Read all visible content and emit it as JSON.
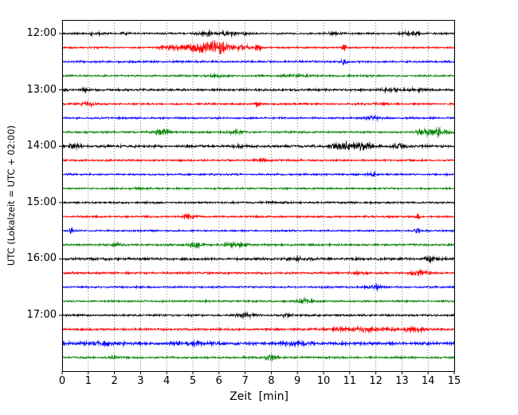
{
  "figure": {
    "background": "#ffffff"
  },
  "chart_data": {
    "type": "line",
    "subtype": "seismogram-helicorder",
    "title": "",
    "xlabel": "Zeit  [min]",
    "ylabel": "UTC (Lokalzeit = UTC + 02:00)",
    "xlim": [
      0,
      15
    ],
    "minutes_per_line": 15,
    "x_tick_labels": [
      "0",
      "1",
      "2",
      "3",
      "4",
      "5",
      "6",
      "7",
      "8",
      "9",
      "10",
      "11",
      "12",
      "13",
      "14",
      "15"
    ],
    "hour_tick_labels": [
      "12:00",
      "13:00",
      "14:00",
      "15:00",
      "16:00",
      "17:00"
    ],
    "grid": {
      "vertical": true,
      "style": "dotted",
      "color": "#555555"
    },
    "legend": "none",
    "colors": {
      "black": "#000000",
      "red": "#ff0000",
      "blue": "#0000ff",
      "green": "#008000"
    },
    "traces": [
      {
        "time": "12:00",
        "color": "black",
        "base_noise": 1.3,
        "events": [
          [
            1.3,
            1.8,
            0.25
          ],
          [
            2.3,
            1.2,
            0.2
          ],
          [
            5.6,
            1.8,
            0.5
          ],
          [
            6.4,
            1.8,
            0.3
          ],
          [
            7.0,
            1.2,
            0.2
          ],
          [
            10.4,
            1.3,
            0.3
          ],
          [
            13.3,
            2.6,
            0.35
          ]
        ]
      },
      {
        "time": "12:15",
        "color": "red",
        "base_noise": 1.2,
        "events": [
          [
            4.1,
            2.5,
            0.4
          ],
          [
            5.4,
            7.5,
            0.7
          ],
          [
            6.1,
            5.0,
            0.4
          ],
          [
            6.9,
            3.0,
            0.3
          ],
          [
            7.5,
            4.5,
            0.12
          ],
          [
            10.8,
            4.5,
            0.09
          ]
        ]
      },
      {
        "time": "12:30",
        "color": "blue",
        "base_noise": 1.4,
        "events": [
          [
            10.8,
            3.5,
            0.1
          ]
        ]
      },
      {
        "time": "12:45",
        "color": "green",
        "base_noise": 1.3,
        "events": [
          [
            6.0,
            0.8,
            0.5
          ],
          [
            9.0,
            1.0,
            0.5
          ]
        ]
      },
      {
        "time": "13:00",
        "color": "black",
        "base_noise": 1.6,
        "events": [
          [
            1.0,
            1.2,
            0.3
          ],
          [
            12.6,
            1.8,
            0.4
          ],
          [
            13.6,
            1.6,
            0.3
          ]
        ]
      },
      {
        "time": "13:15",
        "color": "red",
        "base_noise": 1.3,
        "events": [
          [
            1.0,
            3.0,
            0.22
          ],
          [
            7.5,
            1.8,
            0.12
          ],
          [
            12.2,
            1.2,
            0.3
          ]
        ]
      },
      {
        "time": "13:30",
        "color": "blue",
        "base_noise": 1.3,
        "events": [
          [
            11.9,
            2.2,
            0.3
          ]
        ]
      },
      {
        "time": "13:45",
        "color": "green",
        "base_noise": 1.4,
        "events": [
          [
            3.8,
            3.5,
            0.3
          ],
          [
            6.6,
            1.8,
            0.35
          ],
          [
            14.2,
            6.0,
            0.5
          ]
        ]
      },
      {
        "time": "14:00",
        "color": "black",
        "base_noise": 1.7,
        "events": [
          [
            0.5,
            3.5,
            0.2
          ],
          [
            6.8,
            1.8,
            0.2
          ],
          [
            10.8,
            6.0,
            0.45
          ],
          [
            11.6,
            3.5,
            0.3
          ],
          [
            12.9,
            2.6,
            0.3
          ]
        ]
      },
      {
        "time": "14:15",
        "color": "red",
        "base_noise": 1.3,
        "events": [
          [
            7.6,
            1.2,
            0.3
          ]
        ]
      },
      {
        "time": "14:30",
        "color": "blue",
        "base_noise": 1.3,
        "events": [
          [
            11.9,
            2.2,
            0.18
          ]
        ]
      },
      {
        "time": "14:45",
        "color": "green",
        "base_noise": 1.2,
        "events": [
          [
            3.0,
            0.7,
            0.4
          ]
        ]
      },
      {
        "time": "15:00",
        "color": "black",
        "base_noise": 1.3,
        "events": [
          [
            8.0,
            0.8,
            0.5
          ]
        ]
      },
      {
        "time": "15:15",
        "color": "red",
        "base_noise": 1.3,
        "events": [
          [
            4.9,
            2.6,
            0.3
          ],
          [
            13.6,
            4.5,
            0.07
          ]
        ]
      },
      {
        "time": "15:30",
        "color": "blue",
        "base_noise": 1.2,
        "events": [
          [
            0.35,
            4.5,
            0.07
          ],
          [
            13.6,
            3.5,
            0.1
          ]
        ]
      },
      {
        "time": "15:45",
        "color": "green",
        "base_noise": 1.4,
        "events": [
          [
            2.0,
            1.2,
            0.3
          ],
          [
            5.1,
            3.2,
            0.25
          ],
          [
            6.6,
            2.4,
            0.4
          ]
        ]
      },
      {
        "time": "16:00",
        "color": "black",
        "base_noise": 1.7,
        "events": [
          [
            9.0,
            1.6,
            0.4
          ],
          [
            14.1,
            3.2,
            0.25
          ]
        ]
      },
      {
        "time": "16:15",
        "color": "red",
        "base_noise": 1.4,
        "events": [
          [
            11.3,
            1.6,
            0.3
          ],
          [
            13.7,
            3.2,
            0.3
          ]
        ]
      },
      {
        "time": "16:30",
        "color": "blue",
        "base_noise": 1.3,
        "events": [
          [
            12.0,
            2.6,
            0.3
          ]
        ]
      },
      {
        "time": "16:45",
        "color": "green",
        "base_noise": 1.3,
        "events": [
          [
            9.3,
            2.2,
            0.3
          ]
        ]
      },
      {
        "time": "17:00",
        "color": "black",
        "base_noise": 1.4,
        "events": [
          [
            7.0,
            3.5,
            0.3
          ],
          [
            8.6,
            1.8,
            0.2
          ]
        ]
      },
      {
        "time": "17:15",
        "color": "red",
        "base_noise": 1.5,
        "events": [
          [
            11.5,
            2.0,
            1.2
          ],
          [
            13.5,
            2.0,
            0.5
          ]
        ]
      },
      {
        "time": "17:30",
        "color": "blue",
        "base_noise": 2.0,
        "events": [
          [
            1.5,
            1.5,
            0.8
          ],
          [
            5.0,
            1.5,
            0.8
          ],
          [
            9.0,
            1.5,
            0.6
          ]
        ]
      },
      {
        "time": "17:45",
        "color": "green",
        "base_noise": 1.4,
        "events": [
          [
            2.0,
            1.2,
            0.2
          ],
          [
            8.0,
            3.0,
            0.25
          ]
        ]
      }
    ]
  }
}
